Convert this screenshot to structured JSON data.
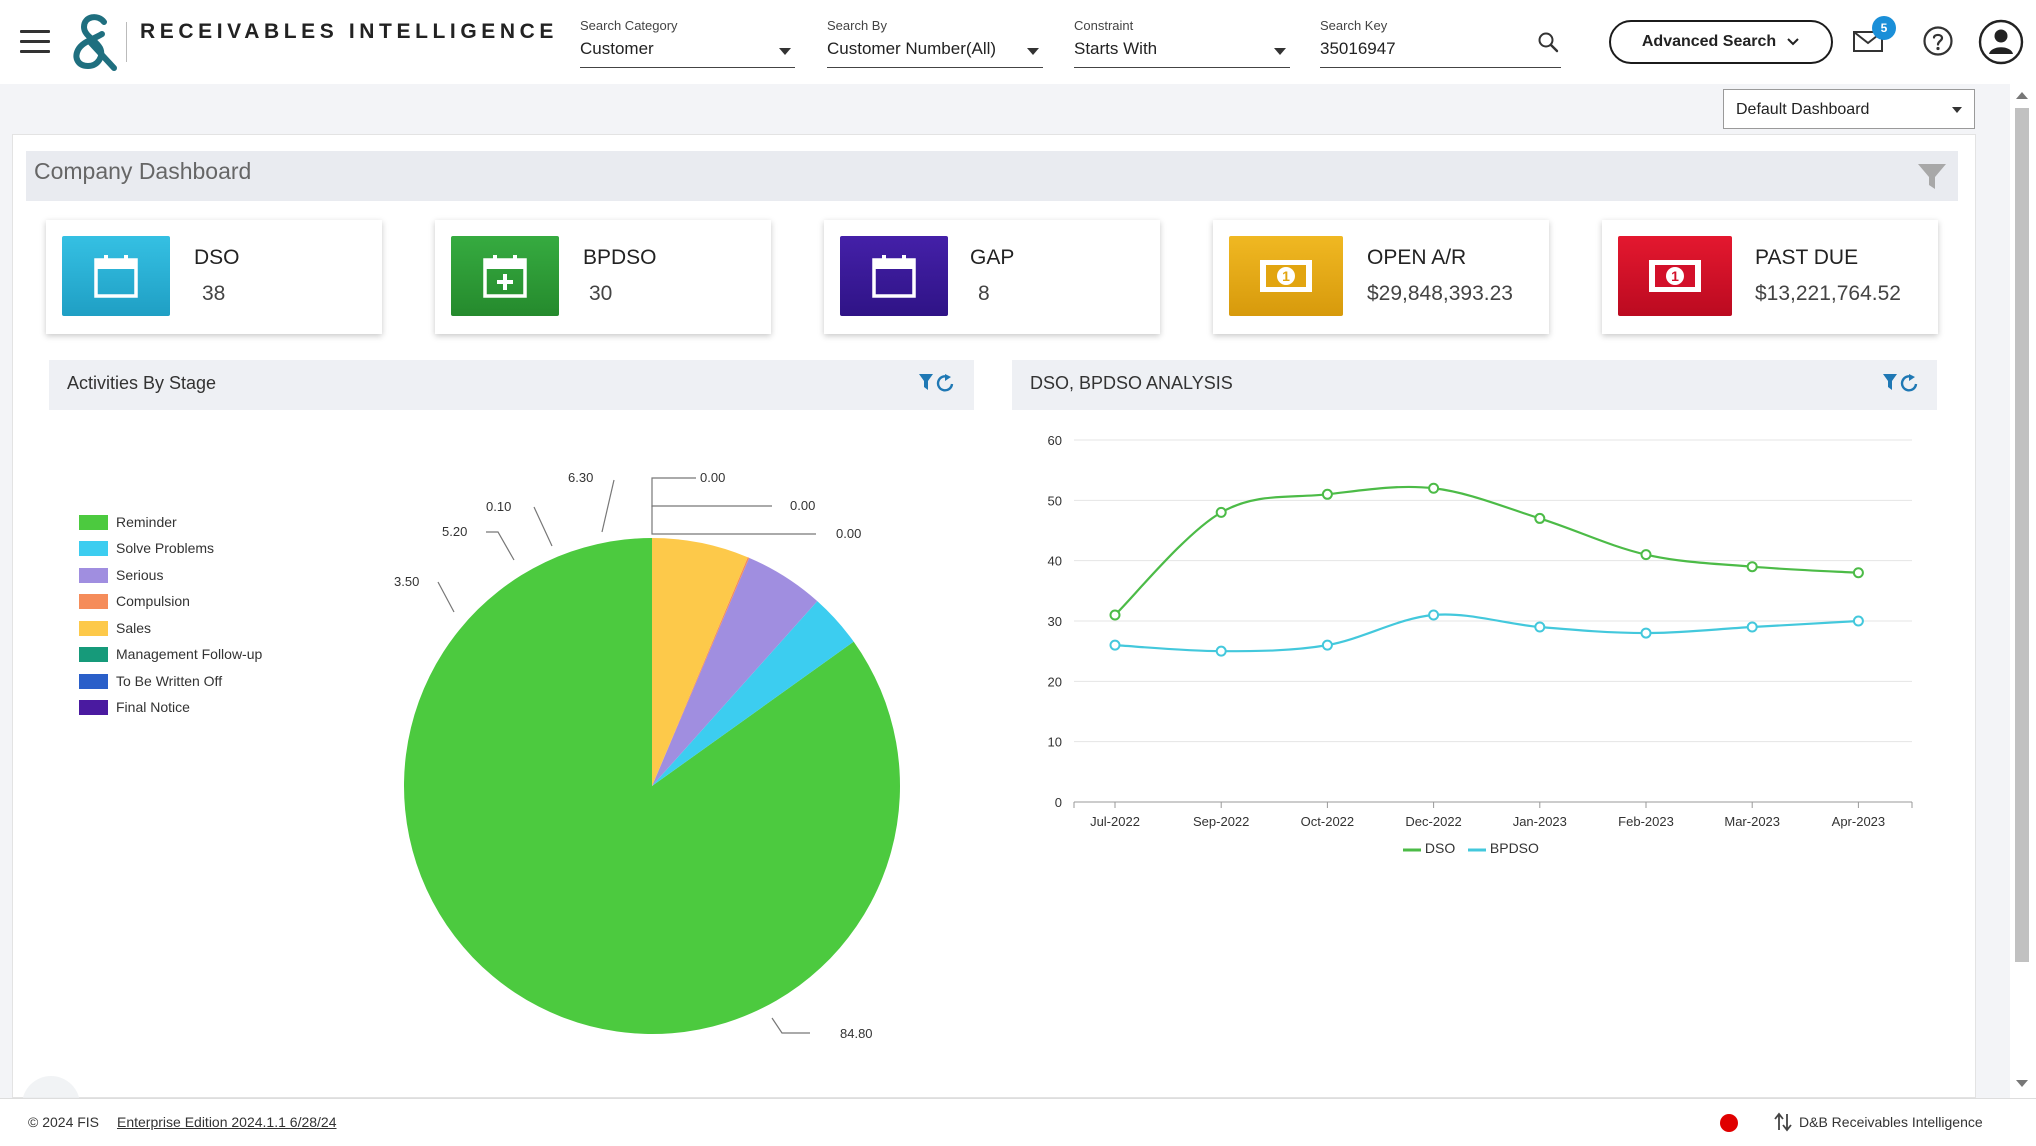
{
  "header": {
    "brand": "RECEIVABLES INTELLIGENCE",
    "search_category": {
      "label": "Search Category",
      "value": "Customer"
    },
    "search_by": {
      "label": "Search By",
      "value": "Customer Number(All)"
    },
    "constraint": {
      "label": "Constraint",
      "value": "Starts With"
    },
    "search_key": {
      "label": "Search Key",
      "value": "35016947"
    },
    "advanced_search": "Advanced Search",
    "mail_count": "5"
  },
  "dashboard_select": "Default Dashboard",
  "panel_title": "Company Dashboard",
  "kpis": [
    {
      "title": "DSO",
      "value": "38",
      "color": "#2bb3d6",
      "icon": "calendar-icon"
    },
    {
      "title": "BPDSO",
      "value": "30",
      "color": "#2e9e3a",
      "icon": "calendar-plus-icon"
    },
    {
      "title": "GAP",
      "value": "8",
      "color": "#3a1a9c",
      "icon": "calendar-icon"
    },
    {
      "title": "OPEN A/R",
      "value": "$29,848,393.23",
      "color": "#e6aa16",
      "icon": "money-icon"
    },
    {
      "title": "PAST DUE",
      "value": "$13,221,764.52",
      "color": "#d3102a",
      "icon": "money-icon"
    }
  ],
  "activities_card": {
    "title": "Activities By Stage"
  },
  "dso_card": {
    "title": "DSO, BPDSO ANALYSIS"
  },
  "chart_data": [
    {
      "type": "pie",
      "title": "Activities By Stage",
      "labels": [
        "Reminder",
        "Solve Problems",
        "Serious",
        "Compulsion",
        "Sales",
        "Management Follow-up",
        "To Be Written Off",
        "Final Notice"
      ],
      "values": [
        84.8,
        3.5,
        5.2,
        0.1,
        6.3,
        0.0,
        0.0,
        0.0
      ],
      "value_labels": [
        "84.80",
        "3.50",
        "5.20",
        "0.10",
        "6.30",
        "0.00",
        "0.00",
        "0.00"
      ],
      "colors": [
        "#4cca3f",
        "#3ccdf0",
        "#a08ee0",
        "#f58c5a",
        "#fdc94a",
        "#169a7a",
        "#2a5fc9",
        "#4a1aa0"
      ],
      "legend_position": "left"
    },
    {
      "type": "line",
      "title": "DSO, BPDSO ANALYSIS",
      "categories": [
        "Jul-2022",
        "Sep-2022",
        "Oct-2022",
        "Dec-2022",
        "Jan-2023",
        "Feb-2023",
        "Mar-2023",
        "Apr-2023"
      ],
      "series": [
        {
          "name": "DSO",
          "values": [
            31,
            48,
            51,
            52,
            47,
            41,
            39,
            38
          ],
          "color": "#4cbb47"
        },
        {
          "name": "BPDSO",
          "values": [
            26,
            25,
            26,
            31,
            29,
            28,
            29,
            30
          ],
          "color": "#43c8dc"
        }
      ],
      "ylim": [
        0,
        60
      ],
      "yticks": [
        "0",
        "10",
        "20",
        "30",
        "40",
        "50",
        "60"
      ],
      "grid": true,
      "legend_position": "bottom"
    }
  ],
  "footer": {
    "copyright": "© 2024 FIS",
    "edition": "Enterprise Edition 2024.1.1 6/28/24",
    "product": "D&B Receivables Intelligence"
  }
}
